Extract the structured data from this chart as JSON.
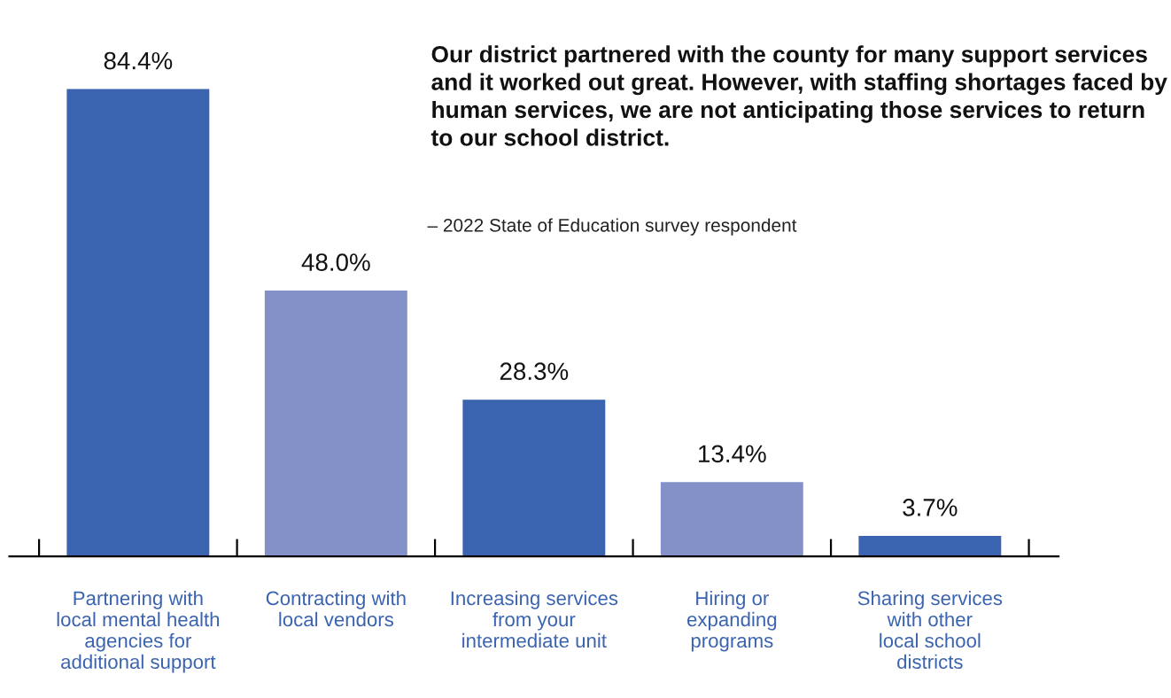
{
  "chart_data": {
    "type": "bar",
    "categories": [
      "Partnering with\nlocal mental health\nagencies for\nadditional support",
      "Contracting with\nlocal vendors",
      "Increasing services\nfrom your\nintermediate unit",
      "Hiring or\nexpanding\nprograms",
      "Sharing services\nwith other\nlocal school\ndistricts"
    ],
    "values": [
      84.4,
      48.0,
      28.3,
      13.4,
      3.7
    ],
    "value_labels": [
      "84.4%",
      "48.0%",
      "28.3%",
      "13.4%",
      "3.7%"
    ],
    "colors": [
      "#3a63b0",
      "#8491c8",
      "#3a63b0",
      "#8491c8",
      "#3a63b0"
    ],
    "annotations": [
      "Our district partnered with the county for many support services and it worked out great. However, with staffing shortages faced by human services, we are not anticipating those services to return to our school district.",
      "– 2022 State of Education survey respondent"
    ],
    "grid": false,
    "legend": false
  }
}
